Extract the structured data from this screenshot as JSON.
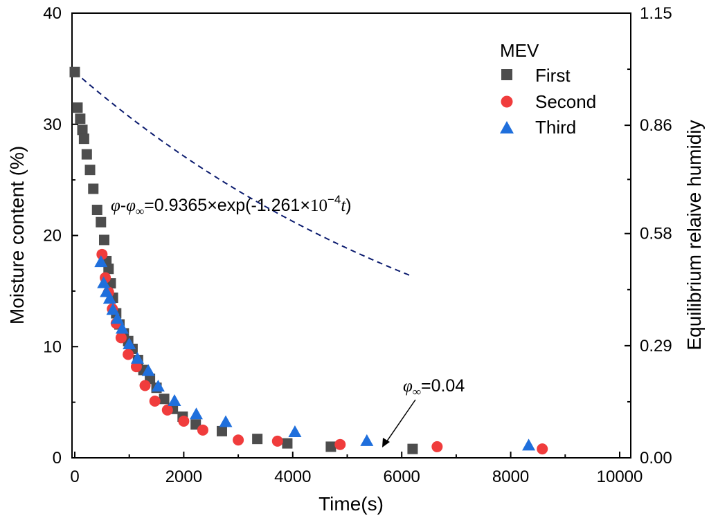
{
  "chart_data": {
    "type": "scatter",
    "xlabel": "Time(s)",
    "ylabel": "Moisture content (%)",
    "y2label": "Equilibrium relaive humidiy",
    "xlim": [
      0,
      10000
    ],
    "ylim": [
      0,
      40
    ],
    "y2lim": [
      0,
      1.15
    ],
    "x_ticks": [
      "0",
      "2000",
      "4000",
      "6000",
      "8000",
      "10000"
    ],
    "y_ticks": [
      "0",
      "10",
      "20",
      "30",
      "40"
    ],
    "y2_ticks": [
      "0.00",
      "0.29",
      "0.58",
      "0.86",
      "1.15"
    ],
    "legend": {
      "title": "MEV",
      "placement": "top-right"
    },
    "series": [
      {
        "name": "First",
        "marker": "square",
        "color": "#4d4d4d",
        "x": [
          0,
          50,
          100,
          140,
          170,
          220,
          280,
          340,
          410,
          480,
          540,
          580,
          620,
          660,
          700,
          760,
          820,
          900,
          980,
          1060,
          1160,
          1260,
          1380,
          1500,
          1640,
          1800,
          1980,
          2220,
          2700,
          3350,
          3900,
          4700,
          6200
        ],
        "y": [
          34.7,
          31.5,
          30.5,
          29.5,
          28.7,
          27.3,
          25.9,
          24.2,
          22.3,
          21.2,
          19.6,
          17.7,
          17.0,
          15.7,
          14.4,
          13.0,
          12.0,
          11.2,
          10.5,
          9.8,
          8.8,
          7.9,
          7.1,
          6.3,
          5.3,
          4.4,
          3.7,
          3.0,
          2.4,
          1.7,
          1.3,
          1.0,
          0.8
        ]
      },
      {
        "name": "Second",
        "marker": "circle",
        "color": "#f03c3c",
        "x": [
          500,
          560,
          620,
          690,
          760,
          850,
          980,
          1130,
          1290,
          1470,
          1700,
          2000,
          2350,
          3000,
          3720,
          4870,
          6650,
          8580
        ],
        "y": [
          18.3,
          16.2,
          14.9,
          13.4,
          12.1,
          10.8,
          9.3,
          8.2,
          6.5,
          5.1,
          4.3,
          3.3,
          2.5,
          1.6,
          1.5,
          1.2,
          1.0,
          0.8
        ]
      },
      {
        "name": "Third",
        "marker": "triangle",
        "color": "#1f6fdc",
        "x": [
          480,
          530,
          580,
          640,
          700,
          780,
          870,
          1000,
          1150,
          1350,
          1530,
          1830,
          2230,
          2770,
          4040,
          5360,
          8330
        ],
        "y": [
          17.6,
          15.7,
          14.9,
          14.3,
          13.3,
          12.5,
          11.6,
          10.2,
          8.9,
          7.8,
          6.4,
          5.1,
          3.9,
          3.2,
          2.3,
          1.5,
          1.1
        ]
      }
    ],
    "fit_curve": {
      "style": "dashed",
      "color": "#0a1a6e",
      "x_range": [
        0,
        6200
      ],
      "y_left": 0,
      "amplitude_left": 34.7,
      "rate": 0.0001261,
      "offset": 0.8
    },
    "annotations": {
      "equation": {
        "phi": "φ",
        "dash": "-",
        "phi_inf": "φ",
        "inf": "∞",
        "rest": "=0.9365×exp(-1.261×",
        "ten": "10",
        "exp": "−4",
        "t": "t",
        "close": ")"
      },
      "phi_inf_label": {
        "phi": "φ",
        "inf": "∞",
        "value": "=0.04"
      }
    }
  }
}
